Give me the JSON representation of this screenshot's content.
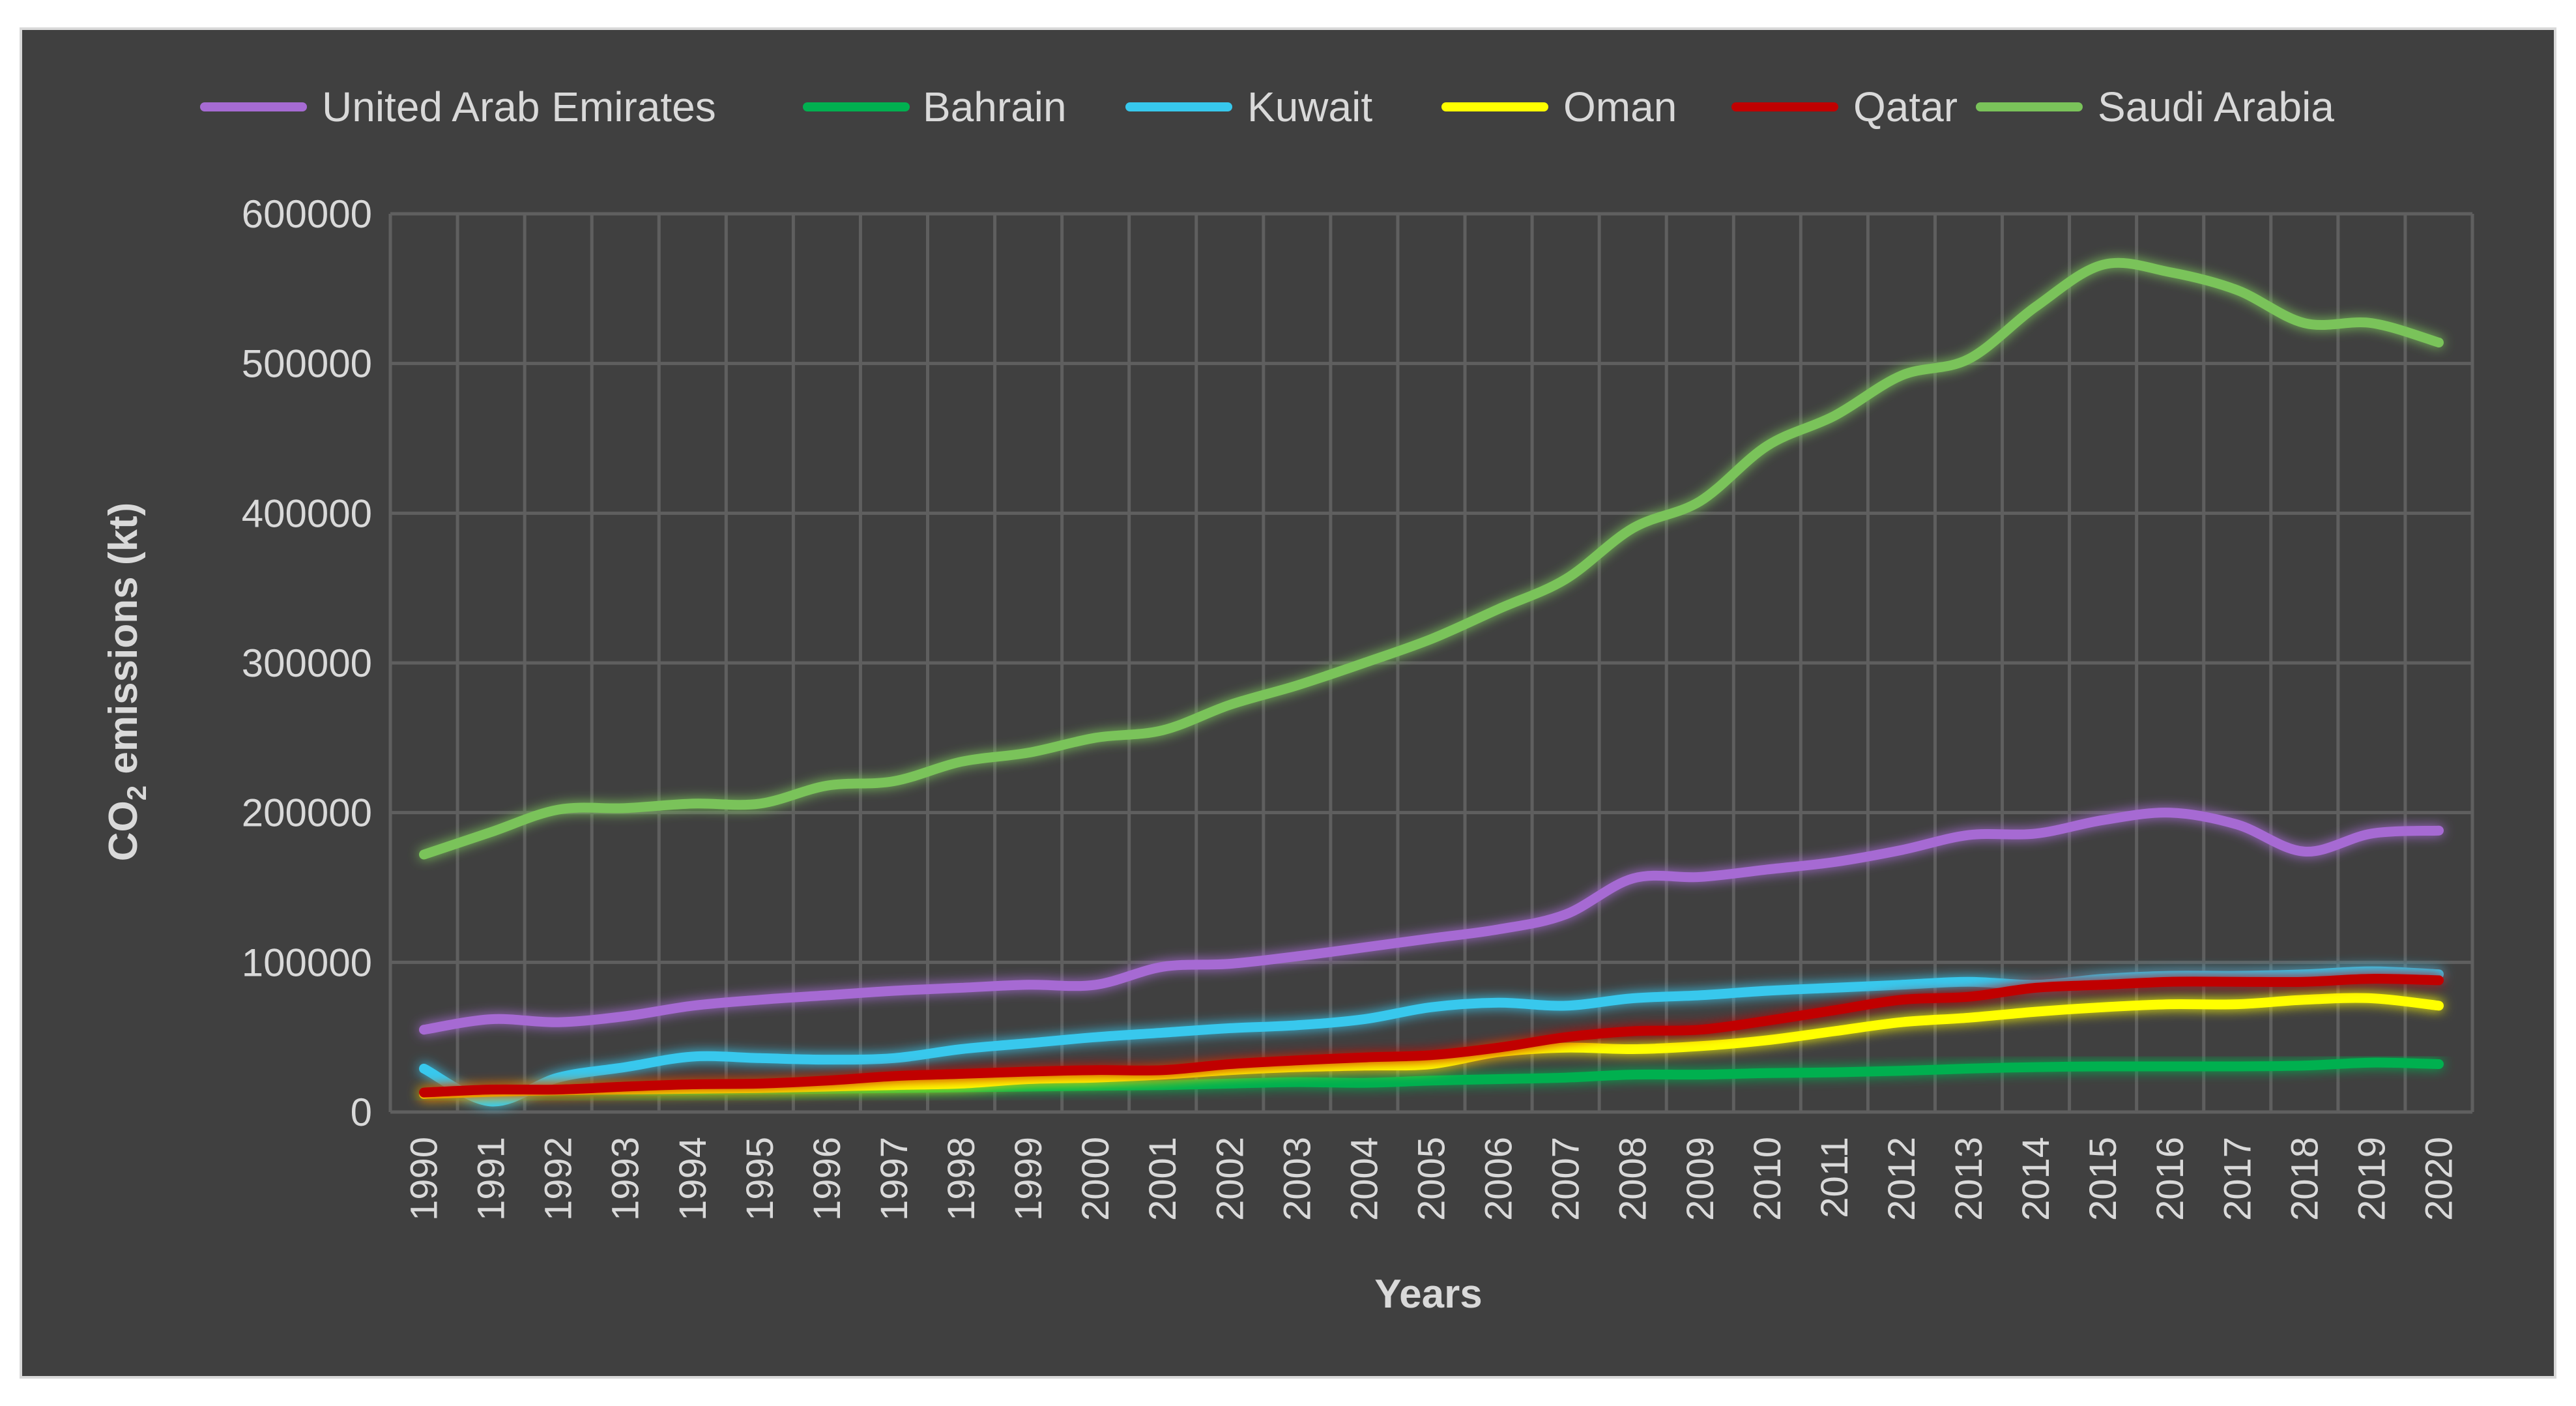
{
  "chart_data": {
    "type": "line",
    "title": "",
    "xlabel": "Years",
    "ylabel": "CO2 emissions (kt)",
    "ylabel_main": "CO",
    "ylabel_sub": "2",
    "ylabel_rest": " emissions (kt)",
    "ylim": [
      0,
      600000
    ],
    "yticks": [
      0,
      100000,
      200000,
      300000,
      400000,
      500000,
      600000
    ],
    "ytick_labels": [
      "0",
      "100000",
      "200000",
      "300000",
      "400000",
      "500000",
      "600000"
    ],
    "grid": true,
    "legend_position": "top",
    "x": [
      "1990",
      "1991",
      "1992",
      "1993",
      "1994",
      "1995",
      "1996",
      "1997",
      "1998",
      "1999",
      "2000",
      "2001",
      "2002",
      "2003",
      "2004",
      "2005",
      "2006",
      "2007",
      "2008",
      "2009",
      "2010",
      "2011",
      "2012",
      "2013",
      "2014",
      "2015",
      "2016",
      "2017",
      "2018",
      "2019",
      "2020"
    ],
    "series": [
      {
        "name": "United Arab Emirates",
        "color": "#a66bd3",
        "values": [
          55000,
          62000,
          60000,
          64000,
          71000,
          75000,
          78000,
          81000,
          83000,
          85000,
          85000,
          97000,
          99000,
          104000,
          110000,
          116000,
          122000,
          132000,
          156000,
          157000,
          162000,
          167000,
          175000,
          185000,
          186000,
          195000,
          200000,
          192000,
          174000,
          186000,
          188000
        ]
      },
      {
        "name": "Bahrain",
        "color": "#00b050",
        "values": [
          12000,
          13000,
          13500,
          14000,
          14500,
          15000,
          15500,
          16000,
          16500,
          17000,
          17500,
          18000,
          19000,
          20000,
          19500,
          21000,
          22000,
          23000,
          25000,
          25000,
          26000,
          26500,
          27500,
          29000,
          30000,
          30500,
          30500,
          30500,
          31000,
          33000,
          32000
        ]
      },
      {
        "name": "Kuwait",
        "color": "#37c8ed",
        "values": [
          29000,
          7000,
          23000,
          30000,
          37000,
          36000,
          35000,
          36000,
          42000,
          46000,
          50000,
          53000,
          56000,
          58000,
          62000,
          70000,
          73000,
          71000,
          76000,
          78000,
          81000,
          83000,
          85000,
          87000,
          85000,
          89000,
          91000,
          91000,
          92000,
          94000,
          92000
        ]
      },
      {
        "name": "Oman",
        "color": "#ffff00",
        "values": [
          12000,
          13500,
          14500,
          15000,
          15500,
          16000,
          17000,
          18000,
          19000,
          22000,
          23000,
          25000,
          28000,
          30000,
          31000,
          32000,
          40000,
          43000,
          42000,
          44000,
          48000,
          54000,
          60000,
          63000,
          67000,
          70000,
          72000,
          72000,
          75000,
          76000,
          71000
        ]
      },
      {
        "name": "Qatar",
        "color": "#c00000",
        "values": [
          13000,
          15000,
          15000,
          17000,
          18500,
          19000,
          21000,
          24000,
          25500,
          27000,
          28000,
          28000,
          32000,
          34500,
          36500,
          38000,
          43000,
          50000,
          54000,
          55000,
          61000,
          68000,
          75000,
          77000,
          83000,
          85000,
          87000,
          87000,
          87000,
          89000,
          88000
        ]
      },
      {
        "name": "Saudi Arabia",
        "color": "#7ac35a",
        "values": [
          172000,
          187000,
          202000,
          203000,
          206000,
          206000,
          218000,
          221000,
          234000,
          240000,
          250000,
          255000,
          272000,
          285000,
          300000,
          316000,
          336000,
          356000,
          390000,
          408000,
          445000,
          465000,
          492000,
          503000,
          538000,
          566000,
          561000,
          549000,
          527000,
          527000,
          514000
        ]
      }
    ]
  }
}
